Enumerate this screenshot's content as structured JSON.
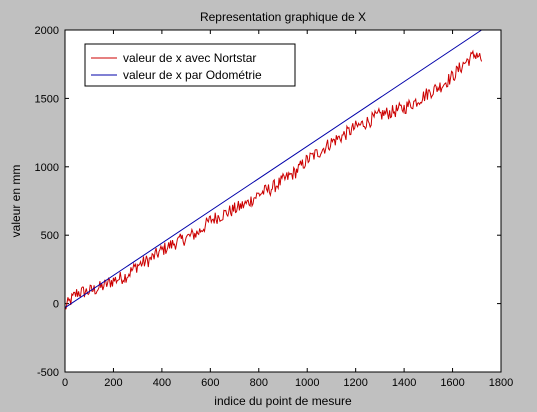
{
  "chart_data": {
    "type": "line",
    "title": "Representation graphique de X",
    "xlabel": "indice du point de mesure",
    "ylabel": "valeur en mm",
    "xlim": [
      0,
      1800
    ],
    "ylim": [
      -500,
      2000
    ],
    "xticks": [
      0,
      200,
      400,
      600,
      800,
      1000,
      1200,
      1400,
      1600,
      1800
    ],
    "yticks": [
      -500,
      0,
      500,
      1000,
      1500,
      2000
    ],
    "grid": false,
    "legend_position": "top-left",
    "series": [
      {
        "name": "valeur de x avec Nortstar",
        "color": "#cc0000",
        "x": [
          0,
          50,
          100,
          150,
          200,
          250,
          300,
          350,
          400,
          450,
          500,
          550,
          600,
          650,
          700,
          750,
          800,
          850,
          900,
          950,
          1000,
          1050,
          1100,
          1150,
          1200,
          1250,
          1300,
          1350,
          1400,
          1450,
          1500,
          1550,
          1600,
          1650,
          1700,
          1720
        ],
        "y": [
          -30,
          80,
          90,
          120,
          170,
          200,
          280,
          320,
          390,
          440,
          480,
          520,
          610,
          650,
          690,
          730,
          800,
          840,
          900,
          960,
          1050,
          1110,
          1180,
          1230,
          1290,
          1330,
          1380,
          1400,
          1430,
          1480,
          1540,
          1590,
          1660,
          1760,
          1830,
          1780
        ],
        "noise_amplitude": 50
      },
      {
        "name": "valeur de x par Odométrie",
        "color": "#0000aa",
        "x": [
          0,
          1720
        ],
        "y": [
          -30,
          2000
        ]
      }
    ]
  }
}
